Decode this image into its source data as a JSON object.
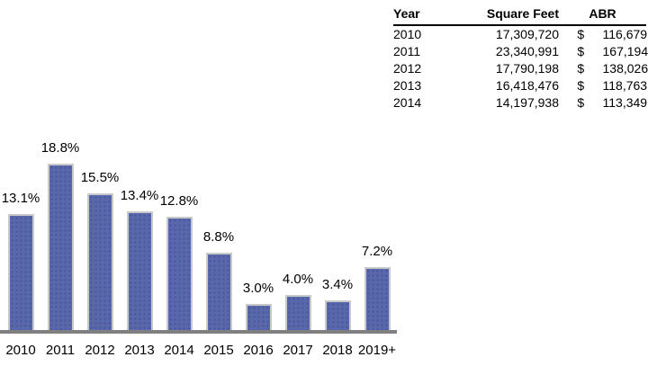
{
  "colors": {
    "bar_fill": "#5868ab",
    "bar_dot": "#47559c",
    "bar_border": "#c9c9c9",
    "axis_line": "#808080",
    "text": "#000000"
  },
  "chart_data": [
    {
      "type": "bar",
      "title": "",
      "xlabel": "",
      "ylabel": "",
      "categories": [
        "2010",
        "2011",
        "2012",
        "2013",
        "2014",
        "2015",
        "2016",
        "2017",
        "2018",
        "2019+"
      ],
      "values": [
        13.1,
        18.8,
        15.5,
        13.4,
        12.8,
        8.8,
        3.0,
        4.0,
        3.4,
        7.2
      ],
      "data_labels": [
        "13.1%",
        "18.8%",
        "15.5%",
        "13.4%",
        "12.8%",
        "8.8%",
        "3.0%",
        "4.0%",
        "3.4%",
        "7.2%"
      ],
      "ylim": [
        0,
        20
      ],
      "grid": false,
      "legend": "none",
      "bar_color": "#5868ab"
    },
    {
      "type": "table",
      "columns": [
        "Year",
        "Square Feet",
        "ABR"
      ],
      "rows": [
        [
          "2010",
          "17,309,720",
          "$",
          "116,679"
        ],
        [
          "2011",
          "23,340,991",
          "$",
          "167,194"
        ],
        [
          "2012",
          "17,790,198",
          "$",
          "138,026"
        ],
        [
          "2013",
          "16,418,476",
          "$",
          "118,763"
        ],
        [
          "2014",
          "14,197,938",
          "$",
          "113,349"
        ]
      ]
    }
  ]
}
